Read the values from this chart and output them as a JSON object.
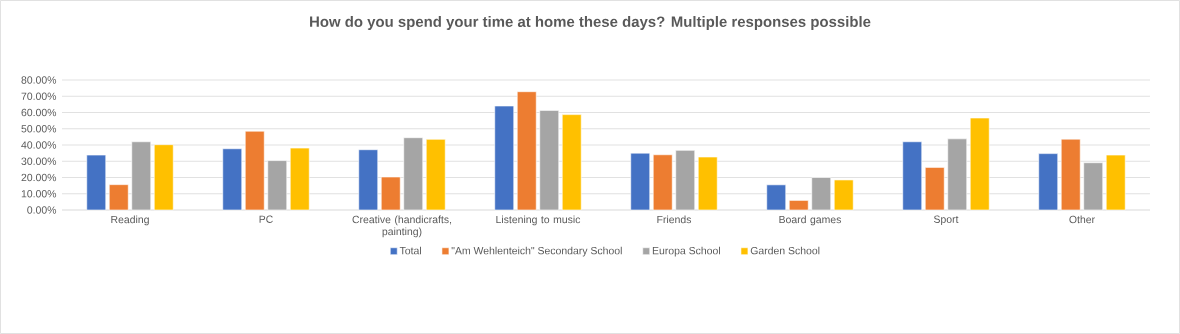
{
  "chart_data": {
    "type": "bar",
    "title": "How do you spend your time at home these days? Multiple responses possible",
    "categories": [
      "Reading",
      "PC",
      "Creative (handicrafts, painting)",
      "Listening to music",
      "Friends",
      "Board games",
      "Sport",
      "Other"
    ],
    "series": [
      {
        "name": "Total",
        "color": "#4472c4",
        "values": [
          33.8,
          37.7,
          37.1,
          64.0,
          35.0,
          15.5,
          42.0,
          34.7
        ]
      },
      {
        "name": "\"Am Wehlenteich\" Secondary School",
        "color": "#ed7d31",
        "values": [
          15.6,
          48.5,
          20.3,
          72.8,
          34.0,
          5.9,
          26.2,
          43.6
        ]
      },
      {
        "name": "Europa School",
        "color": "#a5a5a5",
        "values": [
          42.0,
          30.4,
          44.5,
          61.3,
          36.7,
          20.0,
          43.8,
          29.1
        ]
      },
      {
        "name": "Garden School",
        "color": "#ffc000",
        "values": [
          40.2,
          38.1,
          43.5,
          58.7,
          32.6,
          18.5,
          56.6,
          33.8
        ]
      }
    ],
    "ylim": [
      0,
      80
    ],
    "yticks": [
      {
        "value": 0,
        "label": "0.00%"
      },
      {
        "value": 10,
        "label": "10.00%"
      },
      {
        "value": 20,
        "label": "20.00%"
      },
      {
        "value": 30,
        "label": "30.00%"
      },
      {
        "value": 40,
        "label": "40.00%"
      },
      {
        "value": 50,
        "label": "50.00%"
      },
      {
        "value": 60,
        "label": "60.00%"
      },
      {
        "value": 70,
        "label": "70.00%"
      },
      {
        "value": 80,
        "label": "80.00%"
      }
    ],
    "grid": "y",
    "legend": "bottom"
  }
}
